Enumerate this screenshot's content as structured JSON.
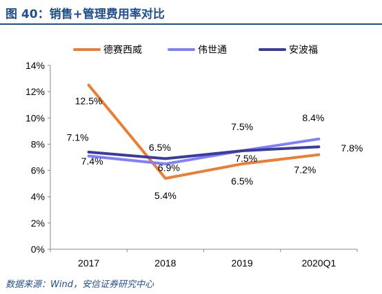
{
  "title": "图 40：销售+管理费用率对比",
  "source": "数据来源：Wind，安信证券研究中心",
  "chart_data": {
    "type": "line",
    "categories": [
      "2017",
      "2018",
      "2019",
      "2020Q1"
    ],
    "ylim": [
      0,
      14
    ],
    "yticks": [
      "0%",
      "2%",
      "4%",
      "6%",
      "8%",
      "10%",
      "12%",
      "14%"
    ],
    "legend_position": "top",
    "grid": false,
    "series": [
      {
        "name": "德赛西威",
        "values": [
          12.5,
          5.4,
          6.5,
          7.2
        ],
        "labels": [
          "12.5%",
          "5.4%",
          "6.5%",
          "7.2%"
        ],
        "color": "#ed7d31"
      },
      {
        "name": "伟世通",
        "values": [
          7.1,
          6.5,
          7.5,
          8.4
        ],
        "labels": [
          "7.1%",
          "6.5%",
          "7.5%",
          "8.4%"
        ],
        "color": "#8080ff"
      },
      {
        "name": "安波福",
        "values": [
          7.4,
          6.9,
          7.5,
          7.8
        ],
        "labels": [
          "7.4%",
          "6.9%",
          "7.5%",
          "7.8%"
        ],
        "color": "#3b3b9e"
      }
    ]
  }
}
